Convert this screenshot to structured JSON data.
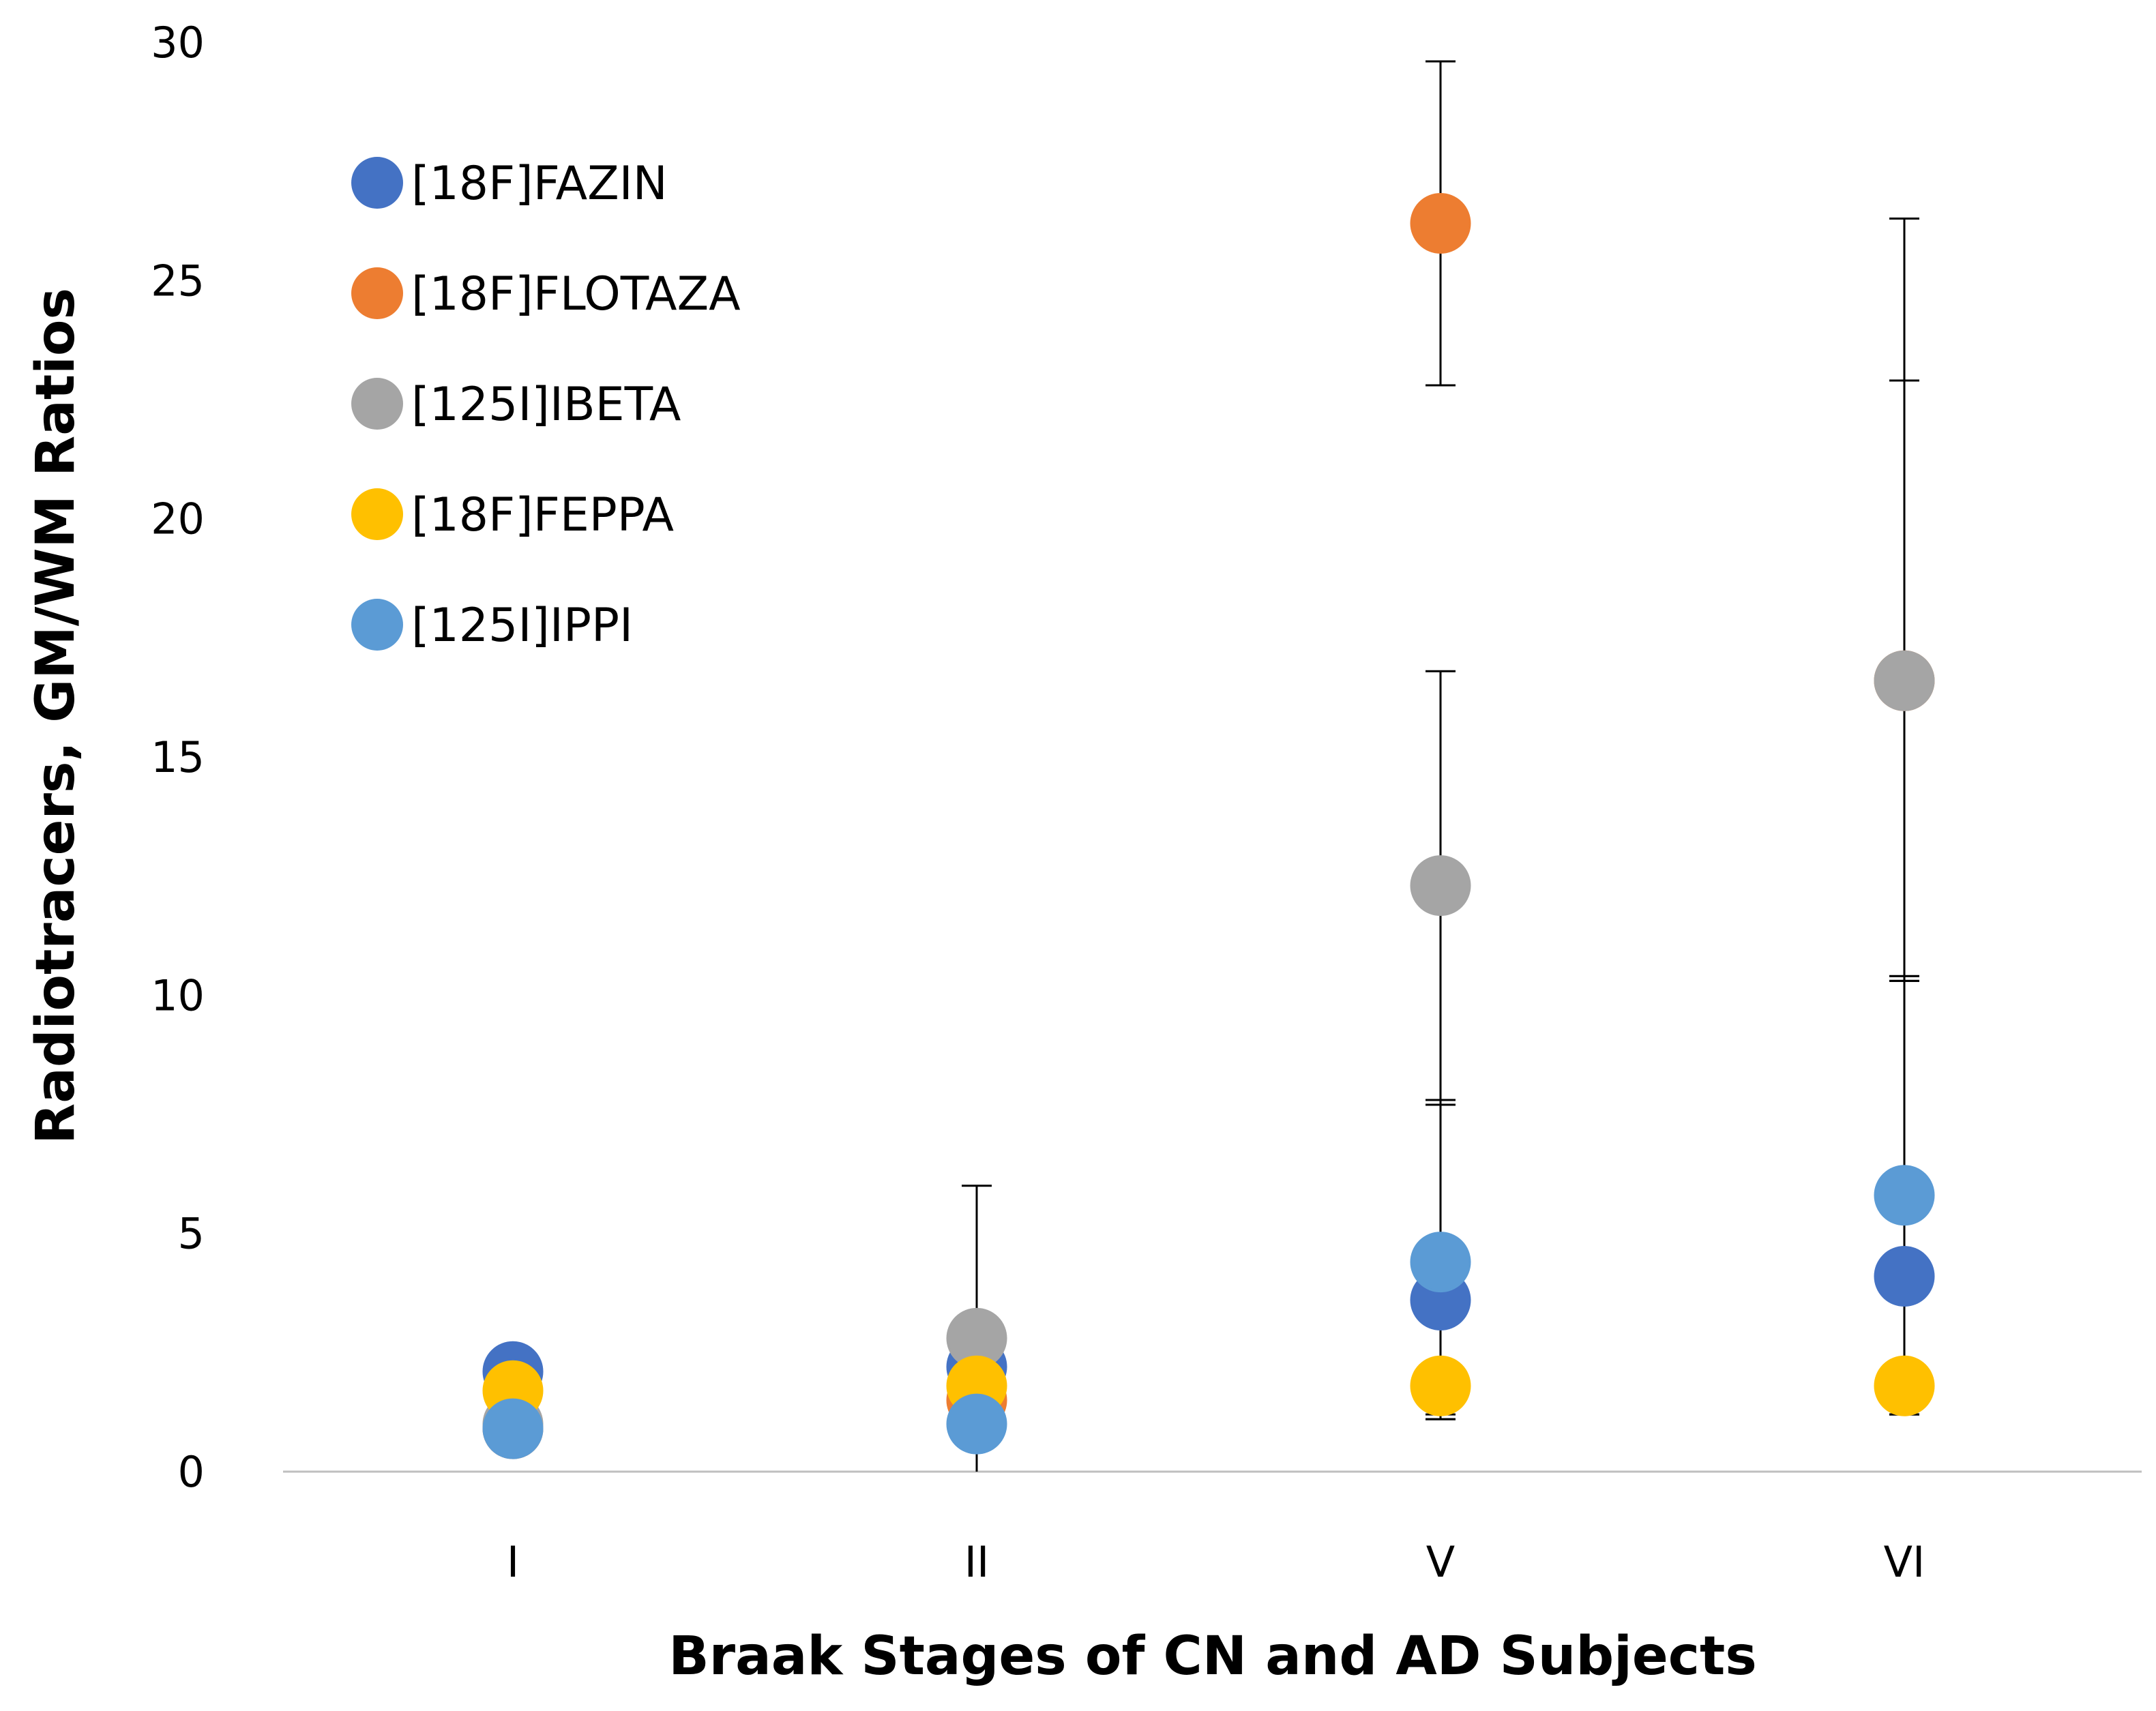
{
  "chart_data": {
    "type": "scatter",
    "title": "",
    "xlabel": "Braak Stages of CN and AD Subjects",
    "ylabel": "Radiotracers, GM/WM Ratios",
    "categories": [
      "I",
      "II",
      "V",
      "VI"
    ],
    "ylim": [
      0,
      30
    ],
    "yticks": [
      0,
      5,
      10,
      15,
      20,
      25,
      30
    ],
    "grid": false,
    "legend_position": "top-left",
    "series": [
      {
        "name": "[18F]FAZIN",
        "color": "#4472C4",
        "values": [
          2.1,
          2.2,
          3.6,
          4.1
        ],
        "error_plus": [
          0,
          0,
          4.2,
          6.2
        ],
        "error_minus": [
          0,
          0,
          2.5,
          2.9
        ]
      },
      {
        "name": "[18F]FLOTAZA",
        "color": "#ED7D31",
        "values": [
          0.9,
          1.5,
          26.2,
          16.6
        ],
        "error_plus": [
          0,
          0,
          3.4,
          9.7
        ],
        "error_minus": [
          0,
          1.5,
          3.4,
          6.2
        ]
      },
      {
        "name": "[125I]IBETA",
        "color": "#A5A5A5",
        "values": [
          1.0,
          2.8,
          12.3,
          16.6
        ],
        "error_plus": [
          0,
          3.2,
          4.5,
          6.3
        ],
        "error_minus": [
          0,
          2.8,
          4.5,
          6.3
        ]
      },
      {
        "name": "[18F]FEPPA",
        "color": "#FFC000",
        "values": [
          1.7,
          1.8,
          1.8,
          1.8
        ],
        "error_plus": [
          0,
          0,
          0,
          0
        ],
        "error_minus": [
          0,
          0,
          0.6,
          0.6
        ]
      },
      {
        "name": "[125I]IPPI",
        "color": "#5B9BD5",
        "values": [
          0.9,
          1.0,
          4.4,
          5.8
        ],
        "error_plus": [
          0,
          0,
          3.3,
          4.6
        ],
        "error_minus": [
          0,
          0,
          3.3,
          4.6
        ]
      }
    ]
  }
}
